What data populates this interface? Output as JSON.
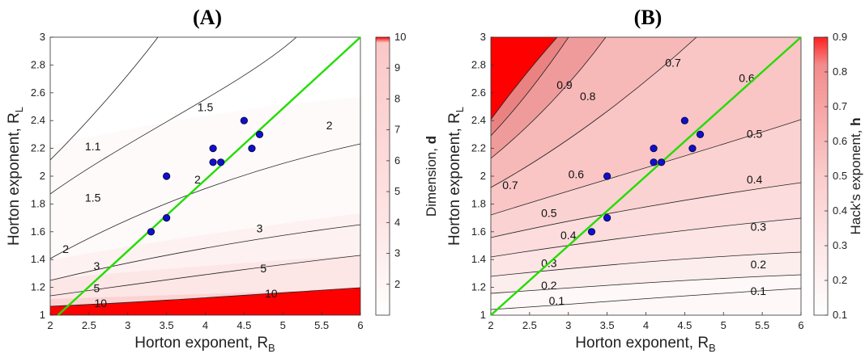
{
  "chart_data": [
    {
      "panel": "(A)",
      "type": "contour",
      "xlabel": "Horton exponent, R",
      "xlabel_sub": "B",
      "ylabel": "Horton exponent, R",
      "ylabel_sub": "L",
      "xlim": [
        2,
        6
      ],
      "ylim": [
        1,
        3
      ],
      "xticks": [
        "2",
        "2.5",
        "3",
        "3.5",
        "4",
        "4.5",
        "5",
        "5.5",
        "6"
      ],
      "yticks": [
        "1",
        "1.2",
        "1.4",
        "1.6",
        "1.8",
        "2",
        "2.2",
        "2.4",
        "2.6",
        "2.8",
        "3"
      ],
      "colorbar": {
        "label": "Dimension, ",
        "label_bold": "d",
        "range": [
          1,
          10
        ],
        "ticks": [
          "2",
          "3",
          "4",
          "5",
          "6",
          "7",
          "8",
          "9",
          "10"
        ]
      },
      "contour_levels": [
        "1.1",
        "1.5",
        "2",
        "3",
        "5",
        "10"
      ],
      "contour_labels": [
        {
          "text": "1.1",
          "x": 2.55,
          "y": 2.21
        },
        {
          "text": "1.5",
          "x": 4.0,
          "y": 2.49
        },
        {
          "text": "2",
          "x": 5.6,
          "y": 2.36
        },
        {
          "text": "1.5",
          "x": 2.55,
          "y": 1.84
        },
        {
          "text": "2",
          "x": 3.9,
          "y": 1.97
        },
        {
          "text": "2",
          "x": 2.2,
          "y": 1.47
        },
        {
          "text": "3",
          "x": 4.7,
          "y": 1.62
        },
        {
          "text": "3",
          "x": 2.6,
          "y": 1.35
        },
        {
          "text": "5",
          "x": 4.75,
          "y": 1.33
        },
        {
          "text": "5",
          "x": 2.6,
          "y": 1.19
        },
        {
          "text": "10",
          "x": 4.85,
          "y": 1.15
        },
        {
          "text": "10",
          "x": 2.65,
          "y": 1.08
        }
      ],
      "line": {
        "color": "#22dd00",
        "from": [
          2.1,
          1.0
        ],
        "to": [
          6.0,
          3.0
        ]
      },
      "points": [
        {
          "x": 3.3,
          "y": 1.6
        },
        {
          "x": 3.5,
          "y": 1.7
        },
        {
          "x": 3.5,
          "y": 2.0
        },
        {
          "x": 4.1,
          "y": 2.1
        },
        {
          "x": 4.1,
          "y": 2.2
        },
        {
          "x": 4.2,
          "y": 2.1
        },
        {
          "x": 4.5,
          "y": 2.4
        },
        {
          "x": 4.6,
          "y": 2.2
        },
        {
          "x": 4.7,
          "y": 2.3
        }
      ]
    },
    {
      "panel": "(B)",
      "type": "contour",
      "xlabel": "Horton exponent, R",
      "xlabel_sub": "B",
      "ylabel": "Horton exponent, R",
      "ylabel_sub": "L",
      "xlim": [
        2,
        6
      ],
      "ylim": [
        1,
        3
      ],
      "xticks": [
        "2",
        "2.5",
        "3",
        "3.5",
        "4",
        "4.5",
        "5",
        "5.5",
        "6"
      ],
      "yticks": [
        "1",
        "1.2",
        "1.4",
        "1.6",
        "1.8",
        "2",
        "2.2",
        "2.4",
        "2.6",
        "2.8",
        "3"
      ],
      "colorbar": {
        "label": "Hack's exponent, ",
        "label_bold": "h",
        "range": [
          0.1,
          0.9
        ],
        "ticks": [
          "0.1",
          "0.2",
          "0.3",
          "0.4",
          "0.5",
          "0.6",
          "0.7",
          "0.8",
          "0.9"
        ]
      },
      "contour_levels": [
        "0.1",
        "0.2",
        "0.3",
        "0.4",
        "0.5",
        "0.6",
        "0.7",
        "0.8",
        "0.9"
      ],
      "contour_labels": [
        {
          "text": "0.9",
          "x": 2.95,
          "y": 2.65
        },
        {
          "text": "0.8",
          "x": 3.25,
          "y": 2.57
        },
        {
          "text": "0.7",
          "x": 4.35,
          "y": 2.81
        },
        {
          "text": "0.6",
          "x": 5.3,
          "y": 2.7
        },
        {
          "text": "0.7",
          "x": 2.25,
          "y": 1.93
        },
        {
          "text": "0.6",
          "x": 3.1,
          "y": 2.01
        },
        {
          "text": "0.5",
          "x": 2.75,
          "y": 1.73
        },
        {
          "text": "0.5",
          "x": 5.4,
          "y": 2.3
        },
        {
          "text": "0.4",
          "x": 3.0,
          "y": 1.57
        },
        {
          "text": "0.4",
          "x": 5.4,
          "y": 1.97
        },
        {
          "text": "0.3",
          "x": 2.75,
          "y": 1.37
        },
        {
          "text": "0.3",
          "x": 5.45,
          "y": 1.63
        },
        {
          "text": "0.2",
          "x": 2.75,
          "y": 1.21
        },
        {
          "text": "0.2",
          "x": 5.45,
          "y": 1.36
        },
        {
          "text": "0.1",
          "x": 2.85,
          "y": 1.1
        },
        {
          "text": "0.1",
          "x": 5.45,
          "y": 1.17
        }
      ],
      "line": {
        "color": "#22dd00",
        "from": [
          2.0,
          1.0
        ],
        "to": [
          6.0,
          3.0
        ]
      },
      "points": [
        {
          "x": 3.3,
          "y": 1.6
        },
        {
          "x": 3.5,
          "y": 1.7
        },
        {
          "x": 3.5,
          "y": 2.0
        },
        {
          "x": 4.1,
          "y": 2.1
        },
        {
          "x": 4.1,
          "y": 2.2
        },
        {
          "x": 4.2,
          "y": 2.1
        },
        {
          "x": 4.5,
          "y": 2.4
        },
        {
          "x": 4.6,
          "y": 2.2
        },
        {
          "x": 4.7,
          "y": 2.3
        }
      ]
    }
  ],
  "colors": {
    "low": "#ffffff",
    "high": "#ff0000",
    "point_fill": "#1010cc",
    "point_stroke": "#000033",
    "contour": "#222222"
  }
}
